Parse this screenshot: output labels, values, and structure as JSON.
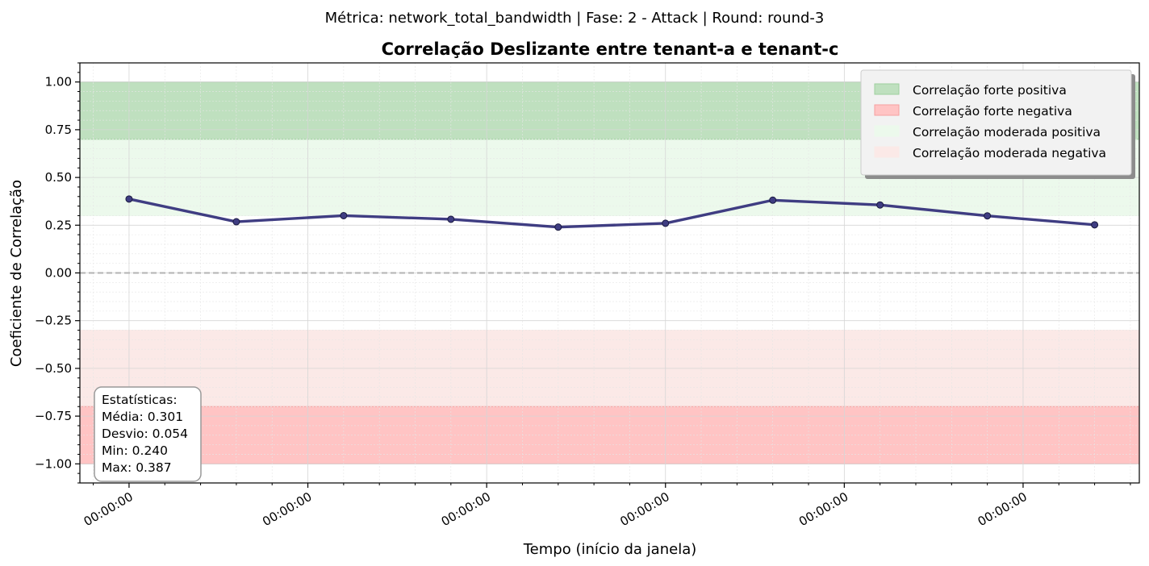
{
  "chart_data": {
    "type": "line",
    "suptitle": "Métrica: network_total_bandwidth | Fase: 2 - Attack | Round: round-3",
    "title": "Correlação Deslizante entre tenant-a e tenant-c",
    "xlabel": "Tempo (início da janela)",
    "ylabel": "Coeficiente de Correlação",
    "ylim": [
      -1.1,
      1.1
    ],
    "yticks": [
      1.0,
      0.75,
      0.5,
      0.25,
      0.0,
      -0.25,
      -0.5,
      -0.75,
      -1.0
    ],
    "ytick_labels": [
      "1.00",
      "0.75",
      "0.50",
      "0.25",
      "0.00",
      "−0.25",
      "−0.50",
      "−0.75",
      "−1.00"
    ],
    "xticks": [
      0,
      1,
      2,
      3,
      4,
      5
    ],
    "xtick_labels": [
      "00:00:00",
      "00:00:00",
      "00:00:00",
      "00:00:00",
      "00:00:00",
      "00:00:00"
    ],
    "xlim": [
      -0.275,
      5.65
    ],
    "grid": true,
    "line_color": "#3f3d82",
    "series": [
      {
        "x": [
          0,
          0.6,
          1.2,
          1.8,
          2.4,
          3.0,
          3.6,
          4.2,
          4.8,
          5.4
        ],
        "values": [
          0.387,
          0.268,
          0.3,
          0.281,
          0.24,
          0.26,
          0.381,
          0.356,
          0.299,
          0.252
        ]
      }
    ],
    "reference_line": {
      "y": 0.0,
      "style": "dashed",
      "color": "#b3b3b3"
    },
    "bands": [
      {
        "label": "Correlação forte positiva",
        "y0": 0.7,
        "y1": 1.0,
        "color": "#bfe0bf",
        "edge": "#9fd09f"
      },
      {
        "label": "Correlação forte negativa",
        "y0": -1.0,
        "y1": -0.7,
        "color": "#ffc4c4",
        "edge": "#f5a0a0"
      },
      {
        "label": "Correlação moderada positiva",
        "y0": 0.3,
        "y1": 0.7,
        "color": "#ecf9ec",
        "edge": "#ecf9ec"
      },
      {
        "label": "Correlação moderada negativa",
        "y0": -0.7,
        "y1": -0.3,
        "color": "#fbe9e7",
        "edge": "#fbe9e7"
      }
    ],
    "legend_position": "top-right",
    "stats": {
      "lines": [
        "Estatísticas:",
        "Média: 0.301",
        "Desvio: 0.054",
        "Min: 0.240",
        "Max: 0.387"
      ]
    }
  }
}
